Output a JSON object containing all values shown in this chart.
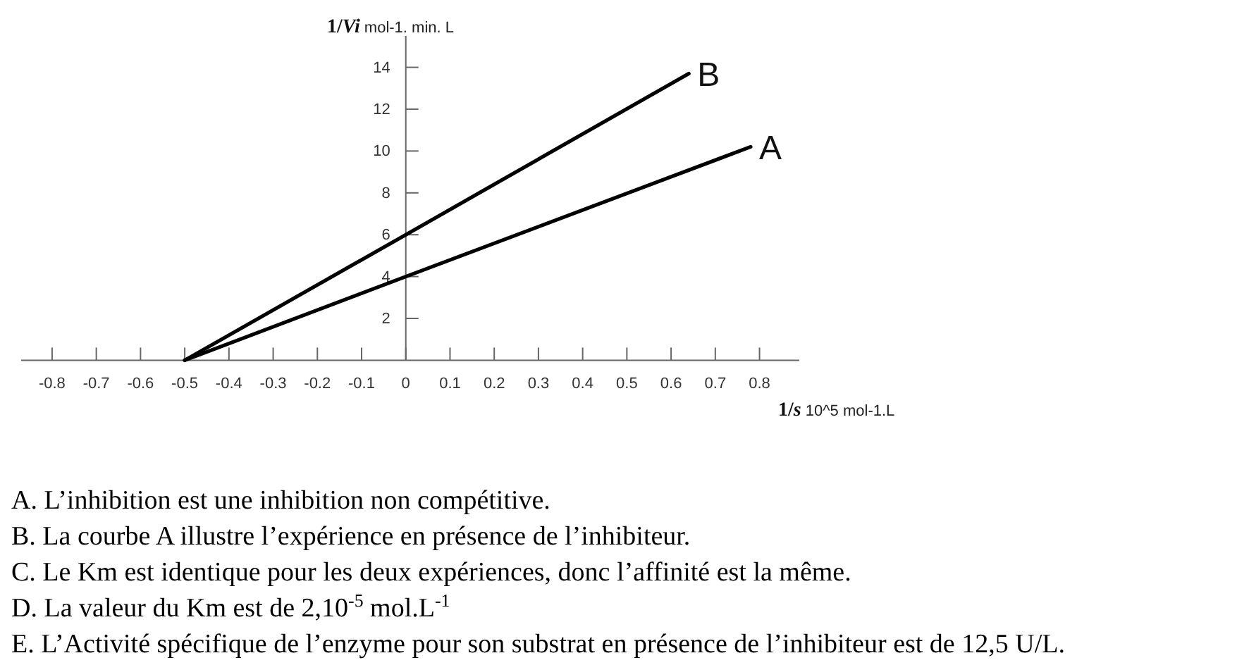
{
  "chart_data": {
    "type": "line",
    "xlabel": "1/s 10^5 mol-1.L",
    "ylabel": "1/Vi mol-1. min. L",
    "series": [
      {
        "name": "B",
        "color": "#000000",
        "x": [
          -0.5,
          0,
          0.64
        ],
        "values": [
          0,
          6,
          13.7
        ]
      },
      {
        "name": "A",
        "color": "#000000",
        "x": [
          -0.5,
          0,
          0.78
        ],
        "values": [
          0,
          4,
          10.2
        ]
      }
    ],
    "xlim": [
      -0.87,
      0.89
    ],
    "ylim": [
      0,
      15.5
    ],
    "xticks": [
      -0.8,
      -0.7,
      -0.6,
      -0.5,
      -0.4,
      -0.3,
      -0.2,
      -0.1,
      0,
      0.1,
      0.2,
      0.3,
      0.4,
      0.5,
      0.6,
      0.7,
      0.8
    ],
    "yticks": [
      2,
      4,
      6,
      8,
      10,
      12,
      14
    ],
    "annotations": [
      "A. L’inhibition est une inhibition non compétitive.",
      "B. La courbe A illustre l’expérience en présence de l’inhibiteur.",
      "C. Le Km est identique pour les deux expériences, donc l’affinité est la même.",
      "D. La valeur du Km est de 2,10$^{-5}$ mol.L$^{-1}$",
      "E. L’Activité spécifique de l’enzyme pour son substrat en présence de l’inhibiteur est de 12,5 U/L."
    ]
  }
}
